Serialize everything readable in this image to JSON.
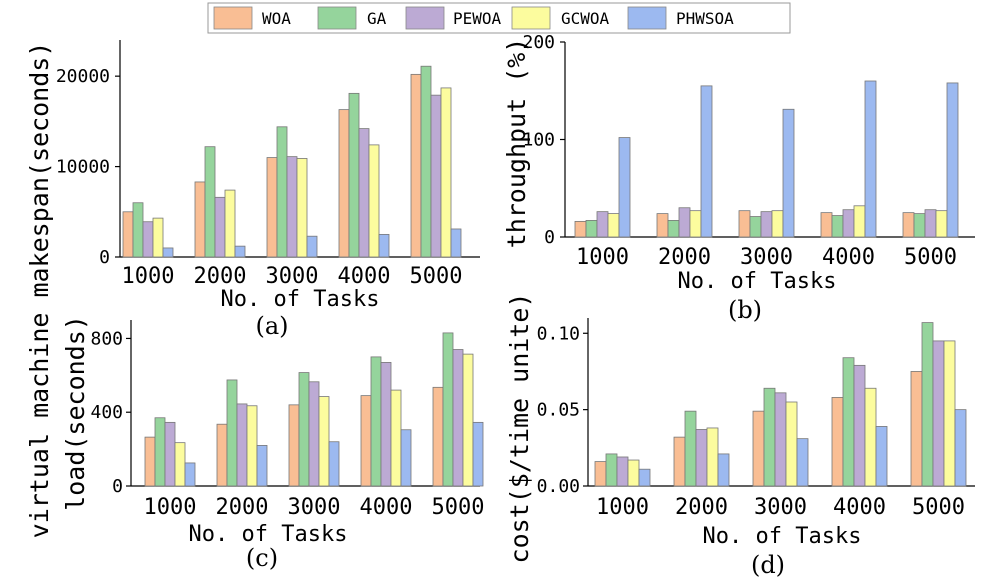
{
  "legend": {
    "entries": [
      "WOA",
      "GA",
      "PEWOA",
      "GCWOA",
      "PHWSOA"
    ]
  },
  "colors": [
    "#f9be94",
    "#95d49c",
    "#bcaad4",
    "#fcfc9e",
    "#9cb9f0"
  ],
  "chart_data": [
    {
      "type": "bar",
      "panel": "(a)",
      "categories": [
        "1000",
        "2000",
        "3000",
        "4000",
        "5000"
      ],
      "xlabel": "No. of Tasks",
      "ylabel": "virtual machine makespan(seconds)",
      "ylim": [
        0,
        24000
      ],
      "yticks": [
        0,
        10000,
        20000
      ],
      "series": [
        {
          "name": "WOA",
          "values": [
            5000,
            8300,
            11000,
            16300,
            20200
          ]
        },
        {
          "name": "GA",
          "values": [
            6000,
            12200,
            14400,
            18100,
            21100
          ]
        },
        {
          "name": "PEWOA",
          "values": [
            3900,
            6600,
            11100,
            14200,
            17900
          ]
        },
        {
          "name": "GCWOA",
          "values": [
            4300,
            7400,
            10900,
            12400,
            18700
          ]
        },
        {
          "name": "PHWSOA",
          "values": [
            1000,
            1200,
            2300,
            2500,
            3100
          ]
        }
      ]
    },
    {
      "type": "bar",
      "panel": "(b)",
      "categories": [
        "1000",
        "2000",
        "3000",
        "4000",
        "5000"
      ],
      "xlabel": "No. of Tasks",
      "ylabel": "throughput (%)",
      "ylim": [
        0,
        200
      ],
      "yticks": [
        0,
        100,
        200
      ],
      "series": [
        {
          "name": "WOA",
          "values": [
            16,
            24,
            27,
            25,
            25
          ]
        },
        {
          "name": "GA",
          "values": [
            17,
            17,
            21,
            22,
            24
          ]
        },
        {
          "name": "PEWOA",
          "values": [
            26,
            30,
            26,
            28,
            28
          ]
        },
        {
          "name": "GCWOA",
          "values": [
            24,
            27,
            27,
            32,
            27
          ]
        },
        {
          "name": "PHWSOA",
          "values": [
            102,
            155,
            131,
            160,
            158
          ]
        }
      ]
    },
    {
      "type": "bar",
      "panel": "(c)",
      "categories": [
        "1000",
        "2000",
        "3000",
        "4000",
        "5000"
      ],
      "xlabel": "No. of Tasks",
      "ylabel": "load(seconds)",
      "ylim": [
        0,
        900
      ],
      "yticks": [
        0,
        400,
        800
      ],
      "series": [
        {
          "name": "WOA",
          "values": [
            265,
            335,
            440,
            490,
            535
          ]
        },
        {
          "name": "GA",
          "values": [
            370,
            575,
            615,
            700,
            830
          ]
        },
        {
          "name": "PEWOA",
          "values": [
            345,
            445,
            565,
            670,
            740
          ]
        },
        {
          "name": "GCWOA",
          "values": [
            235,
            435,
            485,
            520,
            715
          ]
        },
        {
          "name": "PHWSOA",
          "values": [
            125,
            220,
            240,
            305,
            345
          ]
        }
      ]
    },
    {
      "type": "bar",
      "panel": "(d)",
      "categories": [
        "1000",
        "2000",
        "3000",
        "4000",
        "5000"
      ],
      "xlabel": "No. of Tasks",
      "ylabel": "cost($/time unite)",
      "ylim": [
        0,
        0.11
      ],
      "yticks": [
        "0.00",
        "0.05",
        "0.10"
      ],
      "series": [
        {
          "name": "WOA",
          "values": [
            0.016,
            0.032,
            0.049,
            0.058,
            0.075
          ]
        },
        {
          "name": "GA",
          "values": [
            0.021,
            0.049,
            0.064,
            0.084,
            0.107
          ]
        },
        {
          "name": "PEWOA",
          "values": [
            0.019,
            0.037,
            0.061,
            0.079,
            0.095
          ]
        },
        {
          "name": "GCWOA",
          "values": [
            0.017,
            0.038,
            0.055,
            0.064,
            0.095
          ]
        },
        {
          "name": "PHWSOA",
          "values": [
            0.011,
            0.021,
            0.031,
            0.039,
            0.05
          ]
        }
      ]
    }
  ]
}
